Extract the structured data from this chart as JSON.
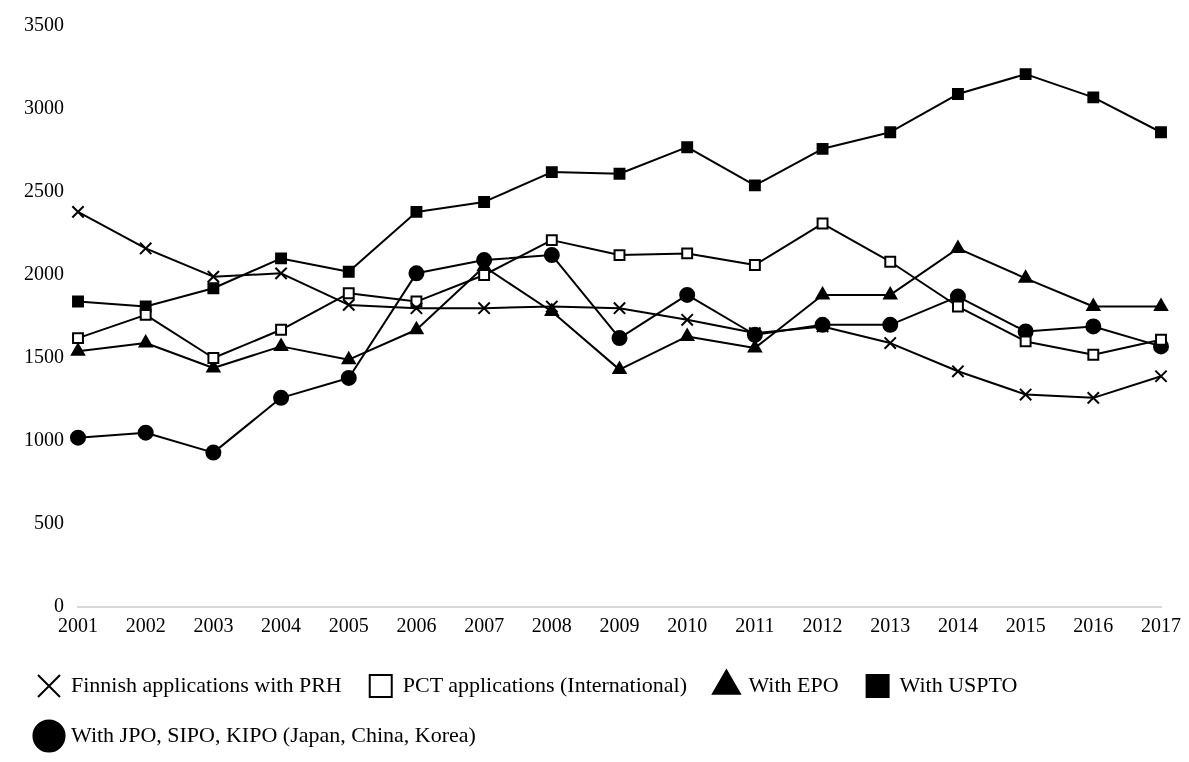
{
  "chart_data": {
    "type": "line",
    "categories": [
      "2001",
      "2002",
      "2003",
      "2004",
      "2005",
      "2006",
      "2007",
      "2008",
      "2009",
      "2010",
      "2011",
      "2012",
      "2013",
      "2014",
      "2015",
      "2016",
      "2017"
    ],
    "series": [
      {
        "name": "Finnish applications with PRH",
        "color": "#000000",
        "marker": "cross",
        "values": [
          2380,
          2160,
          1990,
          2010,
          1820,
          1800,
          1800,
          1810,
          1800,
          1730,
          1650,
          1690,
          1590,
          1420,
          1280,
          1260,
          1390
        ]
      },
      {
        "name": "PCT applications (International)",
        "color": "#000000",
        "marker": "square-open",
        "values": [
          1620,
          1760,
          1500,
          1670,
          1890,
          1840,
          2000,
          2210,
          2120,
          2130,
          2060,
          2310,
          2080,
          1810,
          1600,
          1520,
          1610
        ]
      },
      {
        "name": "With EPO",
        "color": "#000000",
        "marker": "triangle",
        "values": [
          1540,
          1590,
          1440,
          1570,
          1490,
          1670,
          2050,
          1780,
          1430,
          1630,
          1560,
          1880,
          1880,
          2160,
          1980,
          1810,
          1810
        ]
      },
      {
        "name": "With USPTO",
        "color": "#000000",
        "marker": "square",
        "values": [
          1840,
          1810,
          1920,
          2100,
          2020,
          2380,
          2440,
          2620,
          2610,
          2770,
          2540,
          2760,
          2860,
          3090,
          3210,
          3070,
          2860
        ]
      },
      {
        "name": "With JPO, SIPO, KIPO (Japan, China, Korea)",
        "color": "#000000",
        "marker": "circle",
        "values": [
          1020,
          1050,
          930,
          1260,
          1380,
          2010,
          2090,
          2120,
          1620,
          1880,
          1640,
          1700,
          1700,
          1870,
          1660,
          1690,
          1570
        ]
      }
    ],
    "ylim": [
      0,
      3500
    ],
    "yticks": [
      0,
      500,
      1000,
      1500,
      2000,
      2500,
      3000,
      3500
    ],
    "grid": false,
    "legend": "bottom"
  }
}
